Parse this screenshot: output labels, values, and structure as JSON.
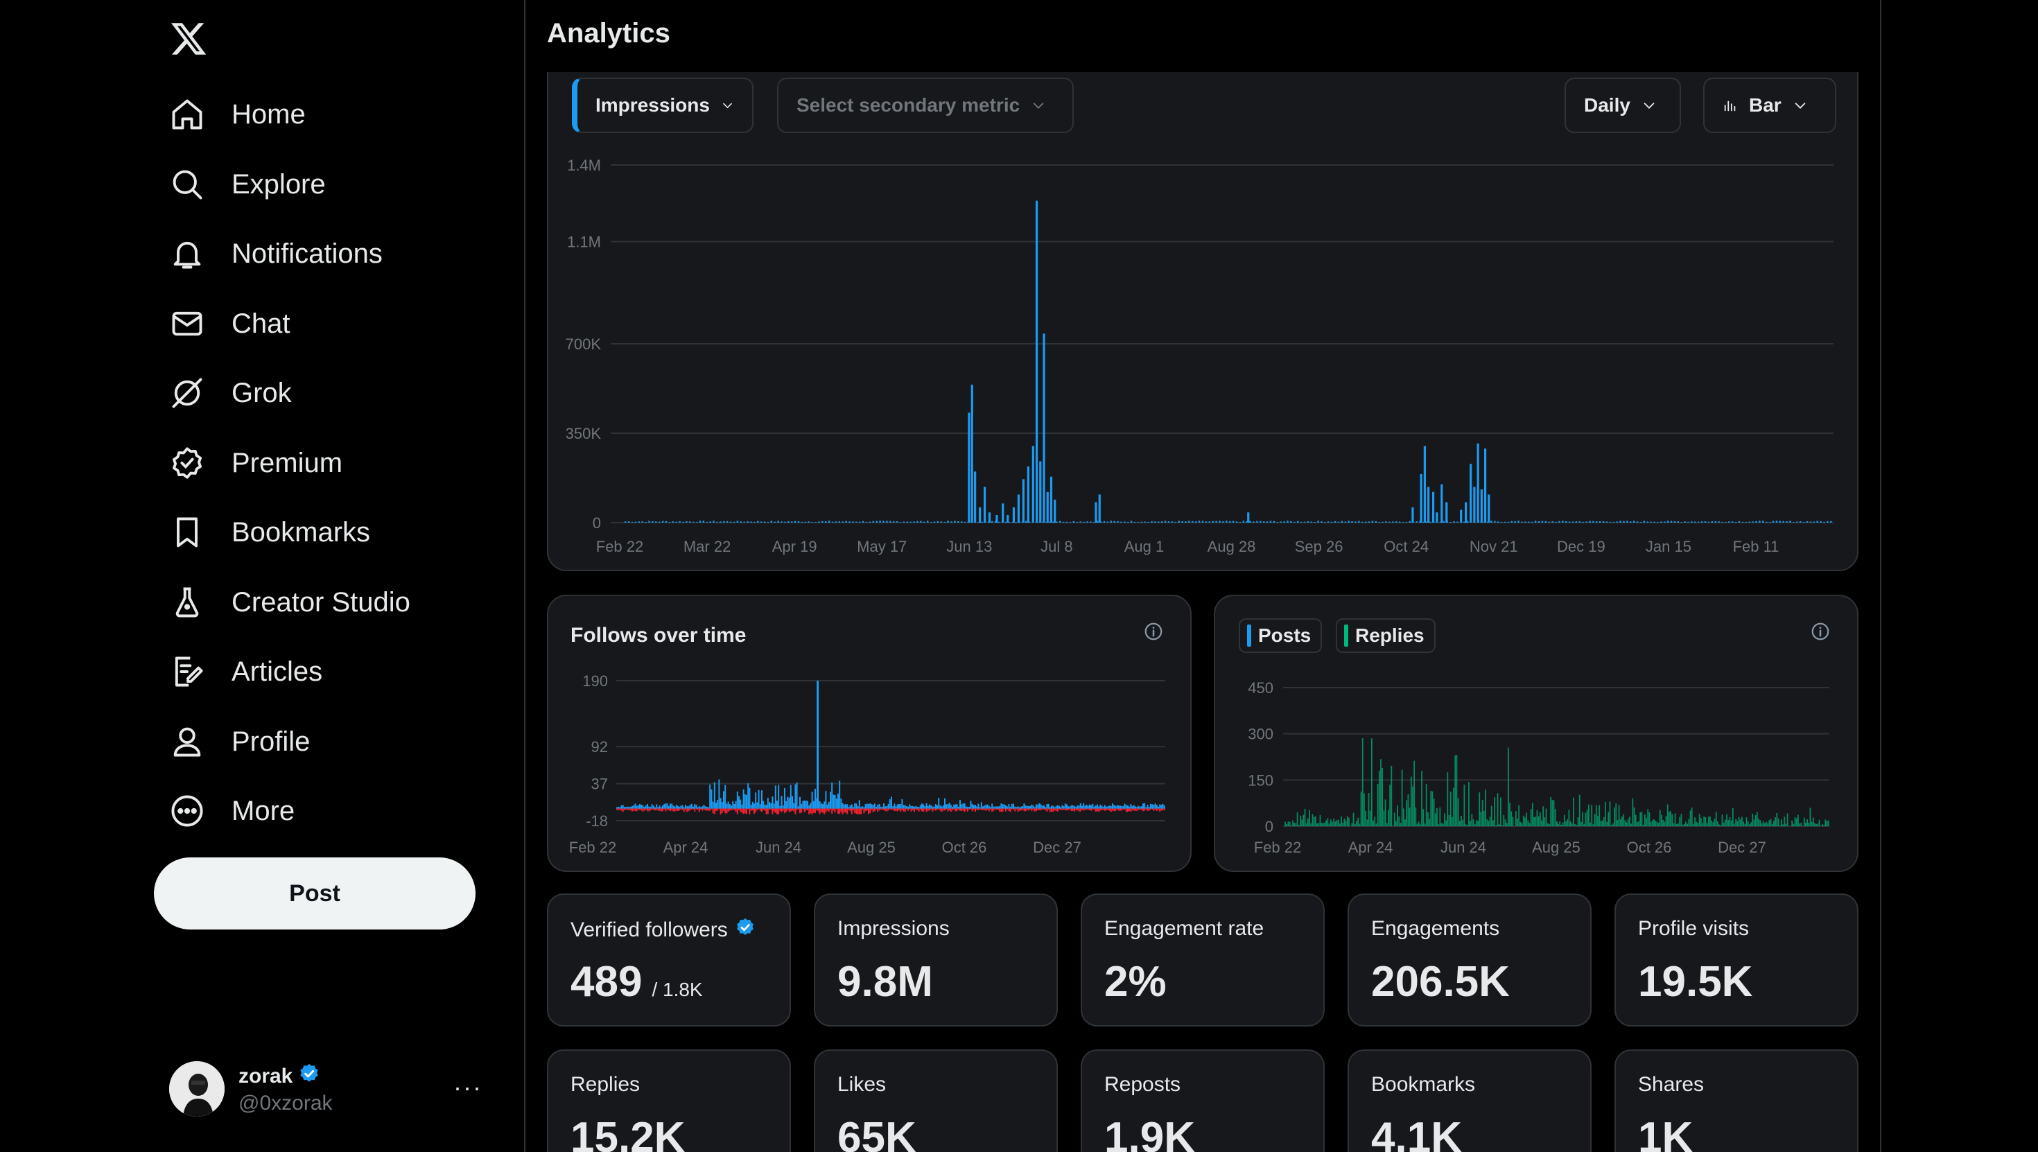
{
  "sidebar": {
    "logo": "x-logo",
    "items": [
      {
        "label": "Home",
        "icon": "home-icon"
      },
      {
        "label": "Explore",
        "icon": "search-icon"
      },
      {
        "label": "Notifications",
        "icon": "bell-icon"
      },
      {
        "label": "Chat",
        "icon": "mail-icon"
      },
      {
        "label": "Grok",
        "icon": "grok-icon"
      },
      {
        "label": "Premium",
        "icon": "verified-badge-icon"
      },
      {
        "label": "Bookmarks",
        "icon": "bookmark-icon"
      },
      {
        "label": "Creator Studio",
        "icon": "flask-icon"
      },
      {
        "label": "Articles",
        "icon": "article-icon"
      },
      {
        "label": "Profile",
        "icon": "person-icon"
      },
      {
        "label": "More",
        "icon": "more-circle-icon"
      }
    ],
    "post_label": "Post",
    "account": {
      "name": "zorak",
      "handle": "@0xzorak",
      "more": "···"
    }
  },
  "page": {
    "title": "Analytics"
  },
  "controls": {
    "primary_metric": "Impressions",
    "secondary_metric": "Select secondary metric",
    "interval": "Daily",
    "chart_type": "Bar"
  },
  "colors": {
    "accent": "#1d9bf0",
    "negative": "#f4212e",
    "replies": "#00ba7c",
    "card": "#16181c",
    "border": "#2f3336"
  },
  "cards": {
    "follows_title": "Follows over time",
    "posts_legend": "Posts",
    "replies_legend": "Replies"
  },
  "stats": [
    {
      "label": "Verified followers",
      "value": "489",
      "sub": "/ 1.8K",
      "verified": true
    },
    {
      "label": "Impressions",
      "value": "9.8M"
    },
    {
      "label": "Engagement rate",
      "value": "2%"
    },
    {
      "label": "Engagements",
      "value": "206.5K"
    },
    {
      "label": "Profile visits",
      "value": "19.5K"
    },
    {
      "label": "Replies",
      "value": "15.2K"
    },
    {
      "label": "Likes",
      "value": "65K"
    },
    {
      "label": "Reposts",
      "value": "1.9K"
    },
    {
      "label": "Bookmarks",
      "value": "4.1K"
    },
    {
      "label": "Shares",
      "value": "1K"
    }
  ],
  "chart_data": [
    {
      "type": "bar",
      "name": "impressions",
      "x_ticks": [
        "Feb 22",
        "Mar 22",
        "Apr 19",
        "May 17",
        "Jun 13",
        "Jul 8",
        "Aug 1",
        "Aug 28",
        "Sep 26",
        "Oct 24",
        "Nov 21",
        "Dec 19",
        "Jan 15",
        "Feb 11"
      ],
      "y_ticks": [
        "1.4M",
        "1.1M",
        "700K",
        "350K",
        "0"
      ],
      "y_tick_values": [
        1400000,
        1100000,
        700000,
        350000,
        0
      ],
      "ylim": [
        0,
        1400000
      ],
      "baseline": 5000,
      "spikes": [
        {
          "pos": 0.284,
          "value": 430000
        },
        {
          "pos": 0.2865,
          "value": 540000
        },
        {
          "pos": 0.289,
          "value": 200000
        },
        {
          "pos": 0.293,
          "value": 60000
        },
        {
          "pos": 0.297,
          "value": 140000
        },
        {
          "pos": 0.301,
          "value": 40000
        },
        {
          "pos": 0.307,
          "value": 30000
        },
        {
          "pos": 0.312,
          "value": 75000
        },
        {
          "pos": 0.316,
          "value": 30000
        },
        {
          "pos": 0.321,
          "value": 60000
        },
        {
          "pos": 0.325,
          "value": 110000
        },
        {
          "pos": 0.329,
          "value": 170000
        },
        {
          "pos": 0.333,
          "value": 220000
        },
        {
          "pos": 0.337,
          "value": 300000
        },
        {
          "pos": 0.34,
          "value": 1260000
        },
        {
          "pos": 0.343,
          "value": 240000
        },
        {
          "pos": 0.346,
          "value": 740000
        },
        {
          "pos": 0.349,
          "value": 120000
        },
        {
          "pos": 0.352,
          "value": 180000
        },
        {
          "pos": 0.355,
          "value": 90000
        },
        {
          "pos": 0.389,
          "value": 80000
        },
        {
          "pos": 0.392,
          "value": 110000
        },
        {
          "pos": 0.515,
          "value": 40000
        },
        {
          "pos": 0.651,
          "value": 60000
        },
        {
          "pos": 0.658,
          "value": 190000
        },
        {
          "pos": 0.661,
          "value": 300000
        },
        {
          "pos": 0.664,
          "value": 140000
        },
        {
          "pos": 0.668,
          "value": 120000
        },
        {
          "pos": 0.671,
          "value": 40000
        },
        {
          "pos": 0.675,
          "value": 150000
        },
        {
          "pos": 0.679,
          "value": 80000
        },
        {
          "pos": 0.691,
          "value": 50000
        },
        {
          "pos": 0.695,
          "value": 80000
        },
        {
          "pos": 0.699,
          "value": 230000
        },
        {
          "pos": 0.702,
          "value": 140000
        },
        {
          "pos": 0.705,
          "value": 310000
        },
        {
          "pos": 0.708,
          "value": 130000
        },
        {
          "pos": 0.711,
          "value": 290000
        },
        {
          "pos": 0.714,
          "value": 110000
        }
      ]
    },
    {
      "type": "bar",
      "name": "follows",
      "title": "Follows over time",
      "x_ticks": [
        "Feb 22",
        "Apr 24",
        "Jun 24",
        "Aug 25",
        "Oct 26",
        "Dec 27"
      ],
      "y_ticks": [
        "190",
        "92",
        "37",
        "-18"
      ],
      "y_tick_values": [
        190,
        92,
        37,
        -18
      ],
      "ylim": [
        -18,
        190
      ],
      "peak": {
        "pos": 0.365,
        "value": 190
      }
    },
    {
      "type": "bar",
      "name": "posts_replies",
      "series": [
        {
          "name": "Posts"
        },
        {
          "name": "Replies"
        }
      ],
      "x_ticks": [
        "Feb 22",
        "Apr 24",
        "Jun 24",
        "Aug 25",
        "Oct 26",
        "Dec 27"
      ],
      "y_ticks": [
        "450",
        "300",
        "150",
        "0"
      ],
      "y_tick_values": [
        450,
        300,
        150,
        0
      ],
      "ylim": [
        0,
        450
      ]
    }
  ]
}
